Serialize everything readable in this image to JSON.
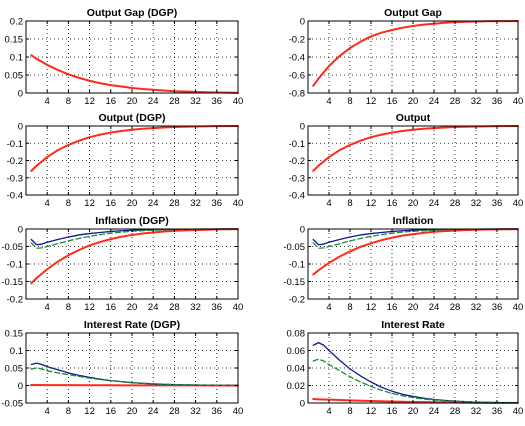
{
  "chart_data": [
    {
      "type": "line",
      "title": "Output Gap (DGP)",
      "xlim": [
        0,
        40
      ],
      "ylim": [
        0,
        0.2
      ],
      "xticks": [
        4,
        8,
        12,
        16,
        20,
        24,
        28,
        32,
        36,
        40
      ],
      "xtick_labels": [
        "4",
        "8",
        "12",
        "16",
        "20",
        "24",
        "28",
        "32",
        "36",
        "40"
      ],
      "yticks": [
        0,
        0.05,
        0.1,
        0.15,
        0.2
      ],
      "ytick_labels": [
        "0",
        "0.05",
        "0.1",
        "0.15",
        "0.2"
      ],
      "grid": true,
      "series": [
        {
          "color": "#ff2a1a",
          "style": "solid",
          "width": 2,
          "x": [
            1,
            2,
            4,
            6,
            8,
            10,
            12,
            14,
            16,
            18,
            20,
            22,
            24,
            26,
            28,
            30,
            32,
            34,
            36,
            38,
            40
          ],
          "y": [
            0.105,
            0.095,
            0.078,
            0.064,
            0.052,
            0.042,
            0.034,
            0.027,
            0.022,
            0.018,
            0.014,
            0.011,
            0.009,
            0.007,
            0.005,
            0.004,
            0.003,
            0.002,
            0.0015,
            0.001,
            0.0005
          ]
        }
      ]
    },
    {
      "type": "line",
      "title": "Output Gap",
      "xlim": [
        0,
        40
      ],
      "ylim": [
        -0.8,
        0
      ],
      "xticks": [
        4,
        8,
        12,
        16,
        20,
        24,
        28,
        32,
        36,
        40
      ],
      "xtick_labels": [
        "4",
        "8",
        "12",
        "16",
        "20",
        "24",
        "28",
        "32",
        "36",
        "40"
      ],
      "yticks": [
        -0.8,
        -0.6,
        -0.4,
        -0.2,
        0
      ],
      "ytick_labels": [
        "-0.8",
        "-0.6",
        "-0.4",
        "-0.2",
        "0"
      ],
      "grid": true,
      "series": [
        {
          "color": "#ff2a1a",
          "style": "solid",
          "width": 2,
          "x": [
            1,
            2,
            4,
            6,
            8,
            10,
            12,
            14,
            16,
            18,
            20,
            22,
            24,
            26,
            28,
            30,
            32,
            34,
            36,
            38,
            40
          ],
          "y": [
            -0.72,
            -0.64,
            -0.5,
            -0.39,
            -0.3,
            -0.23,
            -0.17,
            -0.13,
            -0.1,
            -0.075,
            -0.055,
            -0.04,
            -0.03,
            -0.02,
            -0.013,
            -0.008,
            -0.005,
            -0.003,
            -0.002,
            -0.001,
            -0.0005
          ]
        }
      ]
    },
    {
      "type": "line",
      "title": "Output (DGP)",
      "xlim": [
        0,
        40
      ],
      "ylim": [
        -0.4,
        0
      ],
      "xticks": [
        4,
        8,
        12,
        16,
        20,
        24,
        28,
        32,
        36,
        40
      ],
      "xtick_labels": [
        "4",
        "8",
        "12",
        "16",
        "20",
        "24",
        "28",
        "32",
        "36",
        "40"
      ],
      "yticks": [
        -0.4,
        -0.3,
        -0.2,
        -0.1,
        0
      ],
      "ytick_labels": [
        "-0.4",
        "-0.3",
        "-0.2",
        "-0.1",
        "0"
      ],
      "grid": true,
      "series": [
        {
          "color": "#ff2a1a",
          "style": "solid",
          "width": 2,
          "x": [
            1,
            2,
            4,
            6,
            8,
            10,
            12,
            14,
            16,
            18,
            20,
            22,
            24,
            26,
            28,
            30,
            32,
            34,
            36,
            38,
            40
          ],
          "y": [
            -0.26,
            -0.23,
            -0.18,
            -0.14,
            -0.11,
            -0.085,
            -0.065,
            -0.05,
            -0.038,
            -0.029,
            -0.022,
            -0.016,
            -0.012,
            -0.009,
            -0.006,
            -0.004,
            -0.003,
            -0.002,
            -0.001,
            -0.0005,
            -0.0002
          ]
        }
      ]
    },
    {
      "type": "line",
      "title": "Output",
      "xlim": [
        0,
        40
      ],
      "ylim": [
        -0.4,
        0
      ],
      "xticks": [
        4,
        8,
        12,
        16,
        20,
        24,
        28,
        32,
        36,
        40
      ],
      "xtick_labels": [
        "4",
        "8",
        "12",
        "16",
        "20",
        "24",
        "28",
        "32",
        "36",
        "40"
      ],
      "yticks": [
        -0.4,
        -0.3,
        -0.2,
        -0.1,
        0
      ],
      "ytick_labels": [
        "-0.4",
        "-0.3",
        "-0.2",
        "-0.1",
        "0"
      ],
      "grid": true,
      "series": [
        {
          "color": "#ff2a1a",
          "style": "solid",
          "width": 2,
          "x": [
            1,
            2,
            4,
            6,
            8,
            10,
            12,
            14,
            16,
            18,
            20,
            22,
            24,
            26,
            28,
            30,
            32,
            34,
            36,
            38,
            40
          ],
          "y": [
            -0.26,
            -0.23,
            -0.18,
            -0.14,
            -0.11,
            -0.085,
            -0.065,
            -0.05,
            -0.038,
            -0.029,
            -0.022,
            -0.016,
            -0.012,
            -0.009,
            -0.006,
            -0.004,
            -0.003,
            -0.002,
            -0.001,
            -0.0005,
            -0.0002
          ]
        }
      ]
    },
    {
      "type": "line",
      "title": "Inflation (DGP)",
      "xlim": [
        0,
        40
      ],
      "ylim": [
        -0.2,
        0
      ],
      "xticks": [
        4,
        8,
        12,
        16,
        20,
        24,
        28,
        32,
        36,
        40
      ],
      "xtick_labels": [
        "4",
        "8",
        "12",
        "16",
        "20",
        "24",
        "28",
        "32",
        "36",
        "40"
      ],
      "yticks": [
        -0.2,
        -0.15,
        -0.1,
        -0.05,
        0
      ],
      "ytick_labels": [
        "-0.2",
        "-0.15",
        "-0.1",
        "-0.05",
        "0"
      ],
      "grid": true,
      "series": [
        {
          "color": "#ff2a1a",
          "style": "solid",
          "width": 2,
          "x": [
            1,
            2,
            4,
            6,
            8,
            10,
            12,
            14,
            16,
            18,
            20,
            22,
            24,
            26,
            28,
            30,
            32,
            34,
            36,
            38,
            40
          ],
          "y": [
            -0.155,
            -0.14,
            -0.115,
            -0.093,
            -0.075,
            -0.06,
            -0.047,
            -0.037,
            -0.029,
            -0.022,
            -0.017,
            -0.013,
            -0.01,
            -0.007,
            -0.005,
            -0.004,
            -0.003,
            -0.002,
            -0.001,
            -0.0007,
            -0.0004
          ]
        },
        {
          "color": "#101a8c",
          "style": "solid",
          "width": 1.3,
          "x": [
            1,
            2,
            3,
            4,
            6,
            8,
            10,
            12,
            14,
            16,
            18,
            20,
            22,
            24,
            26,
            28,
            30,
            32,
            34,
            36,
            38,
            40
          ],
          "y": [
            -0.03,
            -0.045,
            -0.043,
            -0.038,
            -0.03,
            -0.023,
            -0.017,
            -0.013,
            -0.01,
            -0.007,
            -0.005,
            -0.0035,
            -0.0025,
            -0.0018,
            -0.0012,
            -0.0008,
            -0.0005,
            -0.0003,
            -0.0002,
            -0.0001,
            -5e-05,
            0
          ]
        },
        {
          "color": "#1f8a3a",
          "style": "dashed",
          "width": 1.3,
          "x": [
            1,
            2,
            3,
            4,
            6,
            8,
            10,
            12,
            14,
            16,
            18,
            20,
            22,
            24,
            26,
            28,
            30,
            32,
            34,
            36,
            38,
            40
          ],
          "y": [
            -0.04,
            -0.055,
            -0.054,
            -0.05,
            -0.042,
            -0.034,
            -0.027,
            -0.021,
            -0.016,
            -0.012,
            -0.009,
            -0.0065,
            -0.0048,
            -0.0035,
            -0.0025,
            -0.0017,
            -0.0011,
            -0.0007,
            -0.0004,
            -0.0002,
            -0.0001,
            0
          ]
        }
      ]
    },
    {
      "type": "line",
      "title": "Inflation",
      "xlim": [
        0,
        40
      ],
      "ylim": [
        -0.2,
        0
      ],
      "xticks": [
        4,
        8,
        12,
        16,
        20,
        24,
        28,
        32,
        36,
        40
      ],
      "xtick_labels": [
        "4",
        "8",
        "12",
        "16",
        "20",
        "24",
        "28",
        "32",
        "36",
        "40"
      ],
      "yticks": [
        -0.2,
        -0.15,
        -0.1,
        -0.05,
        0
      ],
      "ytick_labels": [
        "-0.2",
        "-0.15",
        "-0.1",
        "-0.05",
        "0"
      ],
      "grid": true,
      "series": [
        {
          "color": "#ff2a1a",
          "style": "solid",
          "width": 2,
          "x": [
            1,
            2,
            4,
            6,
            8,
            10,
            12,
            14,
            16,
            18,
            20,
            22,
            24,
            26,
            28,
            30,
            32,
            34,
            36,
            38,
            40
          ],
          "y": [
            -0.13,
            -0.118,
            -0.097,
            -0.079,
            -0.064,
            -0.051,
            -0.041,
            -0.032,
            -0.025,
            -0.019,
            -0.015,
            -0.011,
            -0.008,
            -0.006,
            -0.0045,
            -0.003,
            -0.002,
            -0.0015,
            -0.001,
            -0.0006,
            -0.0003
          ]
        },
        {
          "color": "#101a8c",
          "style": "solid",
          "width": 1.3,
          "x": [
            1,
            2,
            3,
            4,
            6,
            8,
            10,
            12,
            14,
            16,
            18,
            20,
            22,
            24,
            26,
            28,
            30,
            32,
            34,
            36,
            38,
            40
          ],
          "y": [
            -0.03,
            -0.045,
            -0.043,
            -0.038,
            -0.03,
            -0.023,
            -0.017,
            -0.013,
            -0.01,
            -0.007,
            -0.005,
            -0.0035,
            -0.0025,
            -0.0018,
            -0.0012,
            -0.0008,
            -0.0005,
            -0.0003,
            -0.0002,
            -0.0001,
            -5e-05,
            0
          ]
        },
        {
          "color": "#1f8a3a",
          "style": "dashed",
          "width": 1.3,
          "x": [
            1,
            2,
            3,
            4,
            6,
            8,
            10,
            12,
            14,
            16,
            18,
            20,
            22,
            24,
            26,
            28,
            30,
            32,
            34,
            36,
            38,
            40
          ],
          "y": [
            -0.04,
            -0.055,
            -0.054,
            -0.05,
            -0.042,
            -0.034,
            -0.027,
            -0.021,
            -0.016,
            -0.012,
            -0.009,
            -0.0065,
            -0.0048,
            -0.0035,
            -0.0025,
            -0.0017,
            -0.0011,
            -0.0007,
            -0.0004,
            -0.0002,
            -0.0001,
            0
          ]
        }
      ]
    },
    {
      "type": "line",
      "title": "Interest Rate (DGP)",
      "xlim": [
        0,
        40
      ],
      "ylim": [
        -0.05,
        0.15
      ],
      "xticks": [
        4,
        8,
        12,
        16,
        20,
        24,
        28,
        32,
        36,
        40
      ],
      "xtick_labels": [
        "4",
        "8",
        "12",
        "16",
        "20",
        "24",
        "28",
        "32",
        "36",
        "40"
      ],
      "yticks": [
        -0.05,
        0,
        0.05,
        0.1,
        0.15
      ],
      "ytick_labels": [
        "-0.05",
        "0",
        "0.05",
        "0.1",
        "0.15"
      ],
      "grid": true,
      "series": [
        {
          "color": "#ff2a1a",
          "style": "solid",
          "width": 2,
          "x": [
            1,
            4,
            8,
            12,
            16,
            20,
            24,
            28,
            32,
            36,
            40
          ],
          "y": [
            0.0015,
            0.0012,
            0.001,
            0.0008,
            0.0006,
            0.0005,
            0.0004,
            0.0003,
            0.0002,
            0.0001,
            0.0001
          ]
        },
        {
          "color": "#101a8c",
          "style": "solid",
          "width": 1.3,
          "x": [
            1,
            2,
            3,
            4,
            6,
            8,
            10,
            12,
            14,
            16,
            18,
            20,
            22,
            24,
            26,
            28,
            30,
            32,
            34,
            36,
            38,
            40
          ],
          "y": [
            0.06,
            0.064,
            0.06,
            0.054,
            0.045,
            0.036,
            0.029,
            0.023,
            0.018,
            0.014,
            0.011,
            0.008,
            0.006,
            0.0045,
            0.0033,
            0.0024,
            0.0017,
            0.0012,
            0.0008,
            0.0005,
            0.0003,
            0.0002
          ]
        },
        {
          "color": "#1f8a3a",
          "style": "dashed",
          "width": 1.3,
          "x": [
            1,
            2,
            3,
            4,
            6,
            8,
            10,
            12,
            14,
            16,
            18,
            20,
            22,
            24,
            26,
            28,
            30,
            32,
            34,
            36,
            38,
            40
          ],
          "y": [
            0.047,
            0.05,
            0.047,
            0.042,
            0.036,
            0.031,
            0.026,
            0.021,
            0.017,
            0.014,
            0.011,
            0.0085,
            0.0065,
            0.005,
            0.0038,
            0.0028,
            0.002,
            0.0014,
            0.001,
            0.0007,
            0.0004,
            0.0002
          ]
        }
      ]
    },
    {
      "type": "line",
      "title": "Interest Rate",
      "xlim": [
        0,
        40
      ],
      "ylim": [
        0,
        0.08
      ],
      "xticks": [
        4,
        8,
        12,
        16,
        20,
        24,
        28,
        32,
        36,
        40
      ],
      "xtick_labels": [
        "4",
        "8",
        "12",
        "16",
        "20",
        "24",
        "28",
        "32",
        "36",
        "40"
      ],
      "yticks": [
        0,
        0.02,
        0.04,
        0.06,
        0.08
      ],
      "ytick_labels": [
        "0",
        "0.02",
        "0.04",
        "0.06",
        "0.08"
      ],
      "grid": true,
      "series": [
        {
          "color": "#ff2a1a",
          "style": "solid",
          "width": 2,
          "x": [
            1,
            2,
            4,
            8,
            12,
            16,
            20,
            24,
            28,
            32,
            36,
            40
          ],
          "y": [
            0.0045,
            0.0042,
            0.0038,
            0.003,
            0.0023,
            0.0017,
            0.0012,
            0.0008,
            0.0005,
            0.0003,
            0.0002,
            0.0001
          ]
        },
        {
          "color": "#101a8c",
          "style": "solid",
          "width": 1.3,
          "x": [
            1,
            2,
            3,
            4,
            6,
            8,
            10,
            12,
            14,
            16,
            18,
            20,
            22,
            24,
            26,
            28,
            30,
            32,
            34,
            36,
            38,
            40
          ],
          "y": [
            0.066,
            0.069,
            0.066,
            0.06,
            0.049,
            0.039,
            0.031,
            0.024,
            0.018,
            0.0135,
            0.01,
            0.0075,
            0.0055,
            0.004,
            0.003,
            0.0021,
            0.0015,
            0.001,
            0.0007,
            0.0005,
            0.0003,
            0.0002
          ]
        },
        {
          "color": "#1f8a3a",
          "style": "dashed",
          "width": 1.3,
          "x": [
            1,
            2,
            3,
            4,
            6,
            8,
            10,
            12,
            14,
            16,
            18,
            20,
            22,
            24,
            26,
            28,
            30,
            32,
            34,
            36,
            38,
            40
          ],
          "y": [
            0.048,
            0.05,
            0.048,
            0.044,
            0.037,
            0.03,
            0.024,
            0.019,
            0.0145,
            0.011,
            0.0083,
            0.0062,
            0.0046,
            0.0034,
            0.0025,
            0.0018,
            0.0013,
            0.0009,
            0.0006,
            0.0004,
            0.0002,
            0.0001
          ]
        }
      ]
    }
  ]
}
